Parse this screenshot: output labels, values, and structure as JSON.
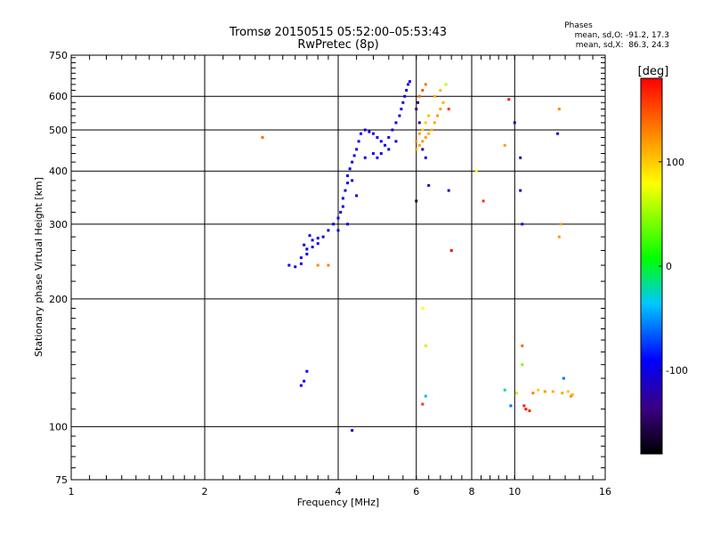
{
  "chart_data": {
    "type": "scatter",
    "title": "Tromsø 20150515 05:52:00–05:53:43",
    "subtitle": "RwPretec (8p)",
    "xlabel": "Frequency [MHz]",
    "ylabel": "Stationary phase Virtual Height [km]",
    "x_scale": "log",
    "y_scale": "log",
    "xlim": [
      1,
      16
    ],
    "ylim": [
      75,
      750
    ],
    "x_ticks": [
      1,
      2,
      4,
      6,
      8,
      10,
      16
    ],
    "x_tick_labels": [
      "1",
      "2",
      "4",
      "6",
      "8",
      "10",
      "16"
    ],
    "y_ticks": [
      75,
      100,
      200,
      300,
      400,
      500,
      600,
      750
    ],
    "y_tick_labels": [
      "75",
      "100",
      "200",
      "300",
      "400",
      "500",
      "600",
      "750"
    ],
    "grid": true,
    "phases_info": {
      "heading": "Phases",
      "line_o": "mean, sd,O: -91.2, 17.3",
      "line_x": "mean, sd,X:  86.3, 24.3"
    },
    "colorbar": {
      "label": "[deg]",
      "range": [
        -180,
        180
      ],
      "ticks": [
        100,
        0,
        -100
      ],
      "tick_labels": [
        "100",
        "0",
        "-100"
      ]
    },
    "series": [
      {
        "points": [
          [
            3.1,
            240,
            -100
          ],
          [
            3.2,
            238,
            -98
          ],
          [
            3.3,
            242,
            -102
          ],
          [
            3.3,
            250,
            -100
          ],
          [
            3.4,
            255,
            -96
          ],
          [
            3.4,
            262,
            -104
          ],
          [
            3.5,
            265,
            -100
          ],
          [
            3.6,
            270,
            -95
          ],
          [
            3.5,
            275,
            -105
          ],
          [
            3.6,
            278,
            -100
          ],
          [
            3.7,
            280,
            -98
          ],
          [
            3.8,
            290,
            -102
          ],
          [
            3.9,
            300,
            -100
          ],
          [
            4.0,
            310,
            -95
          ],
          [
            4.05,
            320,
            -105
          ],
          [
            4.1,
            330,
            -100
          ],
          [
            4.1,
            345,
            -98
          ],
          [
            4.15,
            360,
            -102
          ],
          [
            4.2,
            375,
            -100
          ],
          [
            4.2,
            390,
            -96
          ],
          [
            4.25,
            405,
            -104
          ],
          [
            4.3,
            420,
            -100
          ],
          [
            4.35,
            435,
            -98
          ],
          [
            4.4,
            450,
            -102
          ],
          [
            4.45,
            470,
            -100
          ],
          [
            4.5,
            490,
            -97
          ],
          [
            4.6,
            500,
            -103
          ],
          [
            4.7,
            495,
            -100
          ],
          [
            4.8,
            490,
            -99
          ],
          [
            4.9,
            480,
            -101
          ],
          [
            5.0,
            470,
            -100
          ],
          [
            5.1,
            460,
            -98
          ],
          [
            5.2,
            480,
            -102
          ],
          [
            5.3,
            500,
            -100
          ],
          [
            5.4,
            520,
            -96
          ],
          [
            5.5,
            540,
            -104
          ],
          [
            5.55,
            560,
            -100
          ],
          [
            5.6,
            580,
            -98
          ],
          [
            5.65,
            600,
            -102
          ],
          [
            5.7,
            620,
            -100
          ],
          [
            5.75,
            640,
            -97
          ],
          [
            5.8,
            650,
            -103
          ],
          [
            4.9,
            430,
            -100
          ],
          [
            5.0,
            440,
            -98
          ],
          [
            5.2,
            450,
            -102
          ],
          [
            5.4,
            470,
            -100
          ],
          [
            4.0,
            290,
            -95
          ],
          [
            4.2,
            300,
            -105
          ],
          [
            4.4,
            350,
            -100
          ],
          [
            4.3,
            380,
            -98
          ],
          [
            4.6,
            430,
            -102
          ],
          [
            4.8,
            440,
            -100
          ],
          [
            3.35,
            268,
            -100
          ],
          [
            3.45,
            282,
            -98
          ],
          [
            3.3,
            125,
            -100
          ],
          [
            3.35,
            128,
            -95
          ],
          [
            3.4,
            135,
            -90
          ],
          [
            4.3,
            98,
            -105
          ]
        ]
      },
      {
        "points": [
          [
            6.0,
            450,
            110
          ],
          [
            6.1,
            460,
            115
          ],
          [
            6.2,
            470,
            120
          ],
          [
            6.3,
            480,
            118
          ],
          [
            6.4,
            490,
            112
          ],
          [
            6.5,
            500,
            108
          ],
          [
            6.6,
            520,
            114
          ],
          [
            6.7,
            540,
            120
          ],
          [
            6.8,
            560,
            116
          ],
          [
            6.9,
            580,
            110
          ],
          [
            6.2,
            500,
            95
          ],
          [
            6.3,
            520,
            100
          ],
          [
            6.4,
            540,
            105
          ],
          [
            6.0,
            470,
            122
          ],
          [
            6.1,
            490,
            118
          ],
          [
            6.6,
            600,
            112
          ],
          [
            6.8,
            620,
            108
          ],
          [
            6.1,
            600,
            140
          ],
          [
            6.2,
            620,
            150
          ],
          [
            6.3,
            640,
            135
          ],
          [
            6.0,
            560,
            -140
          ],
          [
            6.05,
            580,
            -150
          ],
          [
            6.1,
            520,
            -130
          ],
          [
            6.2,
            450,
            -120
          ],
          [
            6.3,
            430,
            -110
          ],
          [
            7.1,
            560,
            160
          ],
          [
            7.0,
            640,
            60
          ],
          [
            6.4,
            370,
            -120
          ],
          [
            6.0,
            340,
            -160
          ],
          [
            7.1,
            360,
            -120
          ],
          [
            7.2,
            260,
            180
          ],
          [
            8.5,
            340,
            160
          ],
          [
            8.2,
            400,
            80
          ],
          [
            9.5,
            460,
            120
          ],
          [
            9.7,
            590,
            170
          ],
          [
            10.0,
            520,
            -110
          ],
          [
            10.3,
            430,
            -115
          ],
          [
            10.3,
            360,
            -118
          ],
          [
            10.4,
            300,
            -100
          ],
          [
            12.5,
            490,
            -108
          ],
          [
            12.6,
            560,
            125
          ],
          [
            12.7,
            300,
            115
          ],
          [
            12.6,
            280,
            120
          ],
          [
            3.8,
            240,
            130
          ],
          [
            3.6,
            240,
            125
          ],
          [
            2.7,
            480,
            140
          ],
          [
            6.2,
            190,
            80
          ],
          [
            6.3,
            155,
            60
          ],
          [
            6.3,
            118,
            -40
          ],
          [
            6.2,
            113,
            160
          ],
          [
            9.5,
            122,
            -20
          ],
          [
            9.8,
            112,
            -60
          ],
          [
            10.1,
            120,
            60
          ],
          [
            10.5,
            112,
            170
          ],
          [
            10.6,
            110,
            175
          ],
          [
            10.8,
            109,
            165
          ],
          [
            11.0,
            120,
            130
          ],
          [
            11.3,
            122,
            100
          ],
          [
            11.7,
            121,
            120
          ],
          [
            12.2,
            121,
            110
          ],
          [
            12.8,
            120,
            115
          ],
          [
            13.2,
            121,
            100
          ],
          [
            13.4,
            118,
            130
          ],
          [
            13.5,
            119,
            110
          ],
          [
            12.9,
            130,
            -60
          ],
          [
            10.4,
            155,
            140
          ],
          [
            10.4,
            140,
            40
          ]
        ]
      }
    ]
  }
}
